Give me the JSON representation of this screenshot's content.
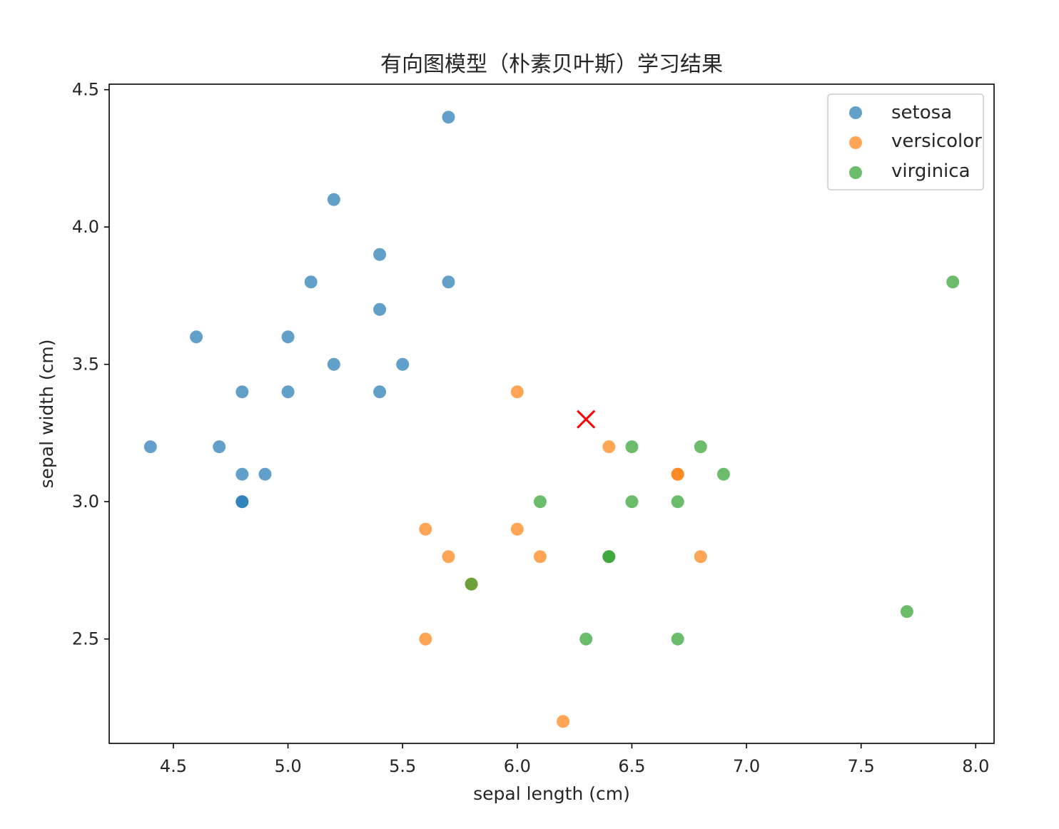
{
  "chart_data": {
    "type": "scatter",
    "title": "有向图模型（朴素贝叶斯）学习结果",
    "xlabel": "sepal length (cm)",
    "ylabel": "sepal width (cm)",
    "xlim": [
      4.22,
      8.08
    ],
    "ylim": [
      2.12,
      4.52
    ],
    "xticks": [
      "4.5",
      "5.0",
      "5.5",
      "6.0",
      "6.5",
      "7.0",
      "7.5",
      "8.0"
    ],
    "yticks": [
      "2.5",
      "3.0",
      "3.5",
      "4.0",
      "4.5"
    ],
    "legend_position": "top-right",
    "grid": false,
    "series": [
      {
        "name": "setosa",
        "color": "#1f77b4",
        "points": [
          [
            5.7,
            4.4
          ],
          [
            5.2,
            4.1
          ],
          [
            5.4,
            3.9
          ],
          [
            5.1,
            3.8
          ],
          [
            5.7,
            3.8
          ],
          [
            5.4,
            3.7
          ],
          [
            4.6,
            3.6
          ],
          [
            5.0,
            3.6
          ],
          [
            5.2,
            3.5
          ],
          [
            5.5,
            3.5
          ],
          [
            4.8,
            3.4
          ],
          [
            5.0,
            3.4
          ],
          [
            5.4,
            3.4
          ],
          [
            4.4,
            3.2
          ],
          [
            4.7,
            3.2
          ],
          [
            4.8,
            3.1
          ],
          [
            4.9,
            3.1
          ],
          [
            4.8,
            3.0
          ],
          [
            4.8,
            3.0
          ]
        ]
      },
      {
        "name": "versicolor",
        "color": "#ff7f0e",
        "points": [
          [
            6.0,
            3.4
          ],
          [
            6.4,
            3.2
          ],
          [
            6.7,
            3.1
          ],
          [
            6.7,
            3.1
          ],
          [
            5.6,
            2.9
          ],
          [
            6.0,
            2.9
          ],
          [
            5.7,
            2.8
          ],
          [
            6.1,
            2.8
          ],
          [
            6.8,
            2.8
          ],
          [
            5.8,
            2.7
          ],
          [
            5.6,
            2.5
          ],
          [
            6.2,
            2.2
          ]
        ]
      },
      {
        "name": "virginica",
        "color": "#2ca02c",
        "points": [
          [
            7.9,
            3.8
          ],
          [
            6.5,
            3.2
          ],
          [
            6.8,
            3.2
          ],
          [
            6.9,
            3.1
          ],
          [
            6.1,
            3.0
          ],
          [
            6.5,
            3.0
          ],
          [
            6.7,
            3.0
          ],
          [
            6.4,
            2.8
          ],
          [
            6.4,
            2.8
          ],
          [
            5.8,
            2.7
          ],
          [
            7.7,
            2.6
          ],
          [
            6.3,
            2.5
          ],
          [
            6.7,
            2.5
          ]
        ]
      }
    ],
    "test_point": {
      "x": 6.3,
      "y": 3.3,
      "marker": "x",
      "color": "#ff0000"
    }
  }
}
